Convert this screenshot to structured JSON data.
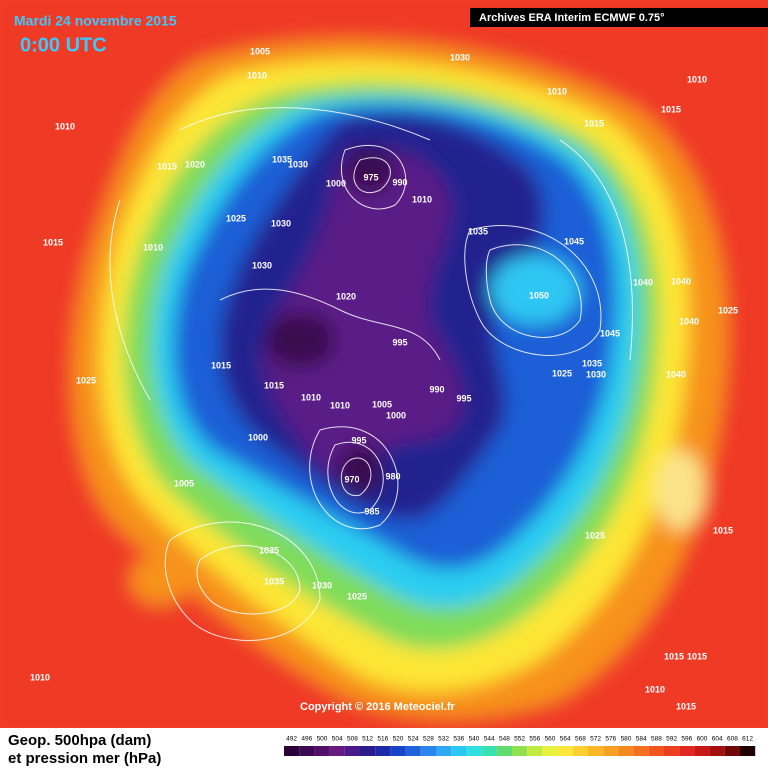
{
  "header": {
    "date": "Mardi 24 novembre 2015",
    "time": "0:00 UTC",
    "source": "Archives ERA Interim ECMWF 0.75°"
  },
  "map": {
    "copyright": "Copyright © 2016 Meteociel.fr",
    "isobar_labels": [
      1005,
      1010,
      1030,
      1010,
      1010,
      1015,
      1015,
      1010,
      1015,
      1020,
      1035,
      1030,
      975,
      1000,
      990,
      1010,
      1025,
      1030,
      1015,
      1010,
      1035,
      1045,
      1030,
      1020,
      1050,
      1040,
      1040,
      1025,
      1040,
      1045,
      995,
      1015,
      1035,
      1025,
      1030,
      1040,
      1025,
      1015,
      990,
      995,
      1010,
      1010,
      1005,
      1000,
      1000,
      995,
      970,
      980,
      985,
      1005,
      1025,
      1015,
      1035,
      1035,
      1030,
      1025,
      1010,
      1015,
      1015,
      1010,
      1015
    ]
  },
  "legend": {
    "title": "Geop. 500hpa (dam)",
    "subtitle": "et pression mer (hPa)",
    "levels": [
      492,
      496,
      500,
      504,
      508,
      512,
      516,
      520,
      524,
      528,
      532,
      536,
      540,
      544,
      548,
      552,
      556,
      560,
      564,
      568,
      572,
      576,
      580,
      584,
      588,
      592,
      596,
      600,
      604,
      608,
      612
    ],
    "colors": [
      "#2a0038",
      "#3d0852",
      "#52106a",
      "#661a82",
      "#4a1a8a",
      "#2a1c8c",
      "#1c2aa8",
      "#1a44c8",
      "#1e62dc",
      "#2a86ec",
      "#30a8f4",
      "#2cc8f4",
      "#30e0e0",
      "#3ae0b0",
      "#60dc70",
      "#90e050",
      "#c0ec40",
      "#e8f040",
      "#fce838",
      "#fcd030",
      "#fab828",
      "#f8a024",
      "#f68820",
      "#f4701e",
      "#f0561e",
      "#ec3e20",
      "#e02820",
      "#c81818",
      "#a41010",
      "#700808",
      "#200000"
    ]
  }
}
